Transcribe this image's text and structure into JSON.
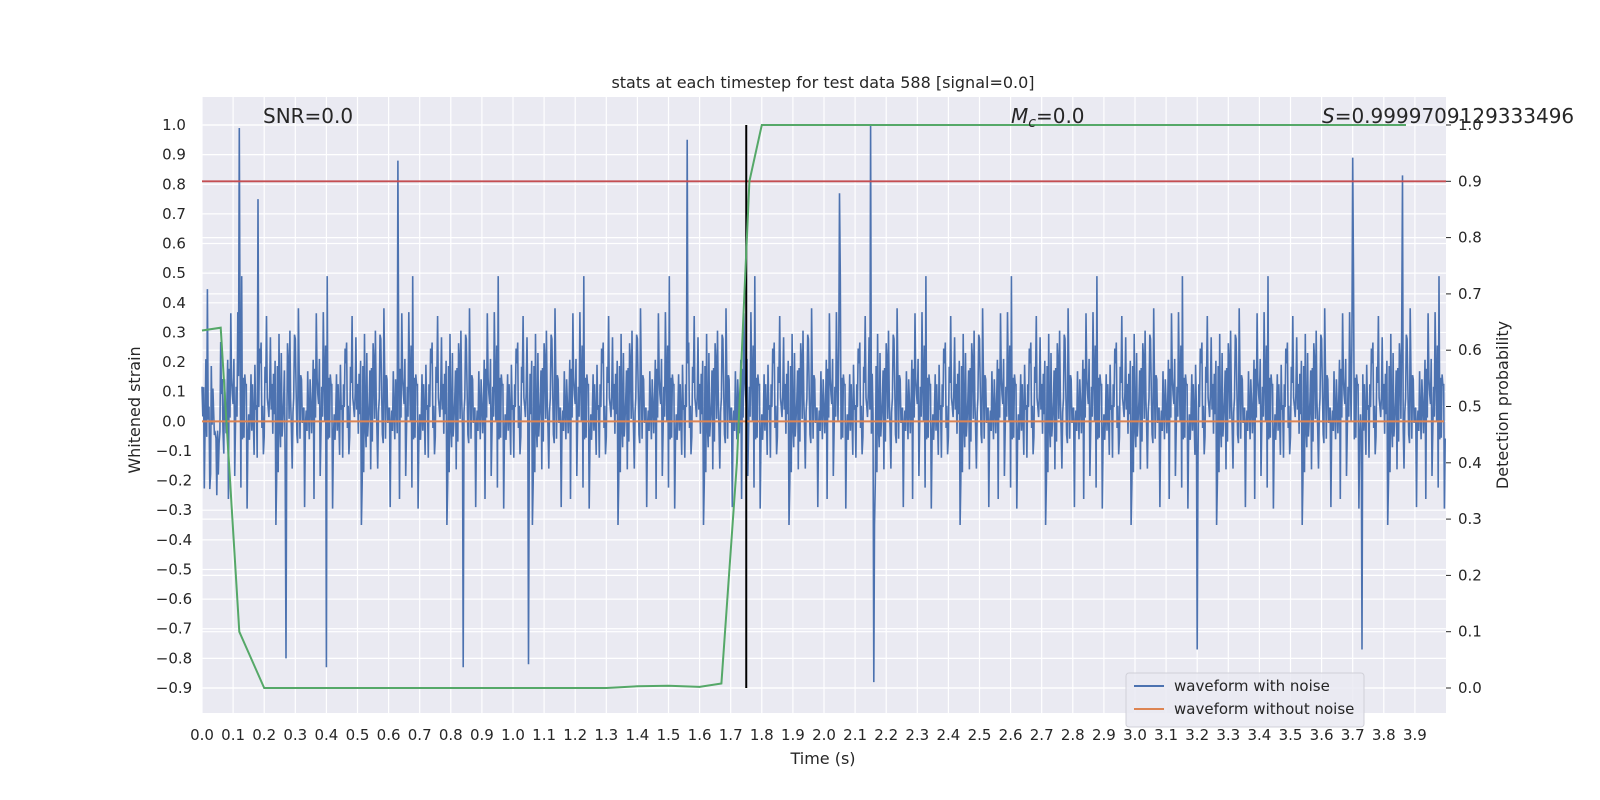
{
  "chart_data": {
    "type": "line",
    "title": "stats at each timestep for test data 588 [signal=0.0]",
    "xlabel": "Time (s)",
    "ylabel": "Whitened strain",
    "y2label": "Detection probability",
    "xlim": [
      0.0,
      4.0
    ],
    "ylim": [
      -1.0,
      1.1
    ],
    "y2lim": [
      -0.05,
      1.0
    ],
    "x_ticks": [
      "0.0",
      "0.1",
      "0.2",
      "0.3",
      "0.4",
      "0.5",
      "0.6",
      "0.7",
      "0.8",
      "0.9",
      "1.0",
      "1.1",
      "1.2",
      "1.3",
      "1.4",
      "1.5",
      "1.6",
      "1.7",
      "1.8",
      "1.9",
      "2.0",
      "2.1",
      "2.2",
      "2.3",
      "2.4",
      "2.5",
      "2.6",
      "2.7",
      "2.8",
      "2.9",
      "3.0",
      "3.1",
      "3.2",
      "3.3",
      "3.4",
      "3.5",
      "3.6",
      "3.7",
      "3.8",
      "3.9"
    ],
    "y_ticks": [
      "1.0",
      "0.9",
      "0.8",
      "0.7",
      "0.6",
      "0.5",
      "0.4",
      "0.3",
      "0.2",
      "0.1",
      "0.0",
      "−0.1",
      "−0.2",
      "−0.3",
      "−0.4",
      "−0.5",
      "−0.6",
      "−0.7",
      "−0.8",
      "−0.9"
    ],
    "y2_ticks": [
      "1.0",
      "0.9",
      "0.8",
      "0.7",
      "0.6",
      "0.5",
      "0.4",
      "0.3",
      "0.2",
      "0.1",
      "0.0"
    ],
    "grid": true,
    "legend_position": "bottom-right",
    "annotations": {
      "snr": "SNR=0.0",
      "mc_symbol": "M",
      "mc_sub": "c",
      "mc_value": "=0.0",
      "s_symbol": "S",
      "s_value": "=0.9999709129333496"
    },
    "series": [
      {
        "name": "waveform with noise",
        "color": "#4c72b0",
        "axis": "left",
        "description_kind": "noise",
        "peaks": [
          [
            0.12,
            0.99
          ],
          [
            0.18,
            0.75
          ],
          [
            0.63,
            0.88
          ],
          [
            1.56,
            0.95
          ],
          [
            2.15,
            1.0
          ],
          [
            3.7,
            0.89
          ],
          [
            3.86,
            0.83
          ],
          [
            2.05,
            0.77
          ],
          [
            0.4,
            -0.83
          ],
          [
            2.16,
            -0.88
          ],
          [
            0.84,
            -0.83
          ],
          [
            1.05,
            -0.82
          ],
          [
            3.2,
            -0.77
          ],
          [
            0.27,
            -0.8
          ],
          [
            3.73,
            -0.77
          ]
        ]
      },
      {
        "name": "waveform without noise",
        "color": "#dd8452",
        "axis": "left",
        "x": [
          0.0,
          4.0
        ],
        "y": [
          0.0,
          0.0
        ]
      },
      {
        "color": "#55a868",
        "axis": "right",
        "x": [
          0.0,
          0.06,
          0.12,
          0.2,
          0.3,
          0.5,
          1.0,
          1.3,
          1.4,
          1.5,
          1.6,
          1.67,
          1.72,
          1.76,
          1.8,
          1.9,
          4.0
        ],
        "y": [
          0.635,
          0.64,
          0.1,
          0.0,
          0.0,
          0.0,
          0.0,
          0.0,
          0.003,
          0.004,
          0.002,
          0.008,
          0.4,
          0.9,
          1.0,
          1.0,
          1.0
        ]
      }
    ],
    "hlines": [
      {
        "y_right": 0.9,
        "color": "#c44e52"
      }
    ],
    "vlines": [
      {
        "x": 1.75,
        "color": "#000000",
        "ymin_right": 0.0,
        "ymax_right": 1.0
      }
    ]
  }
}
